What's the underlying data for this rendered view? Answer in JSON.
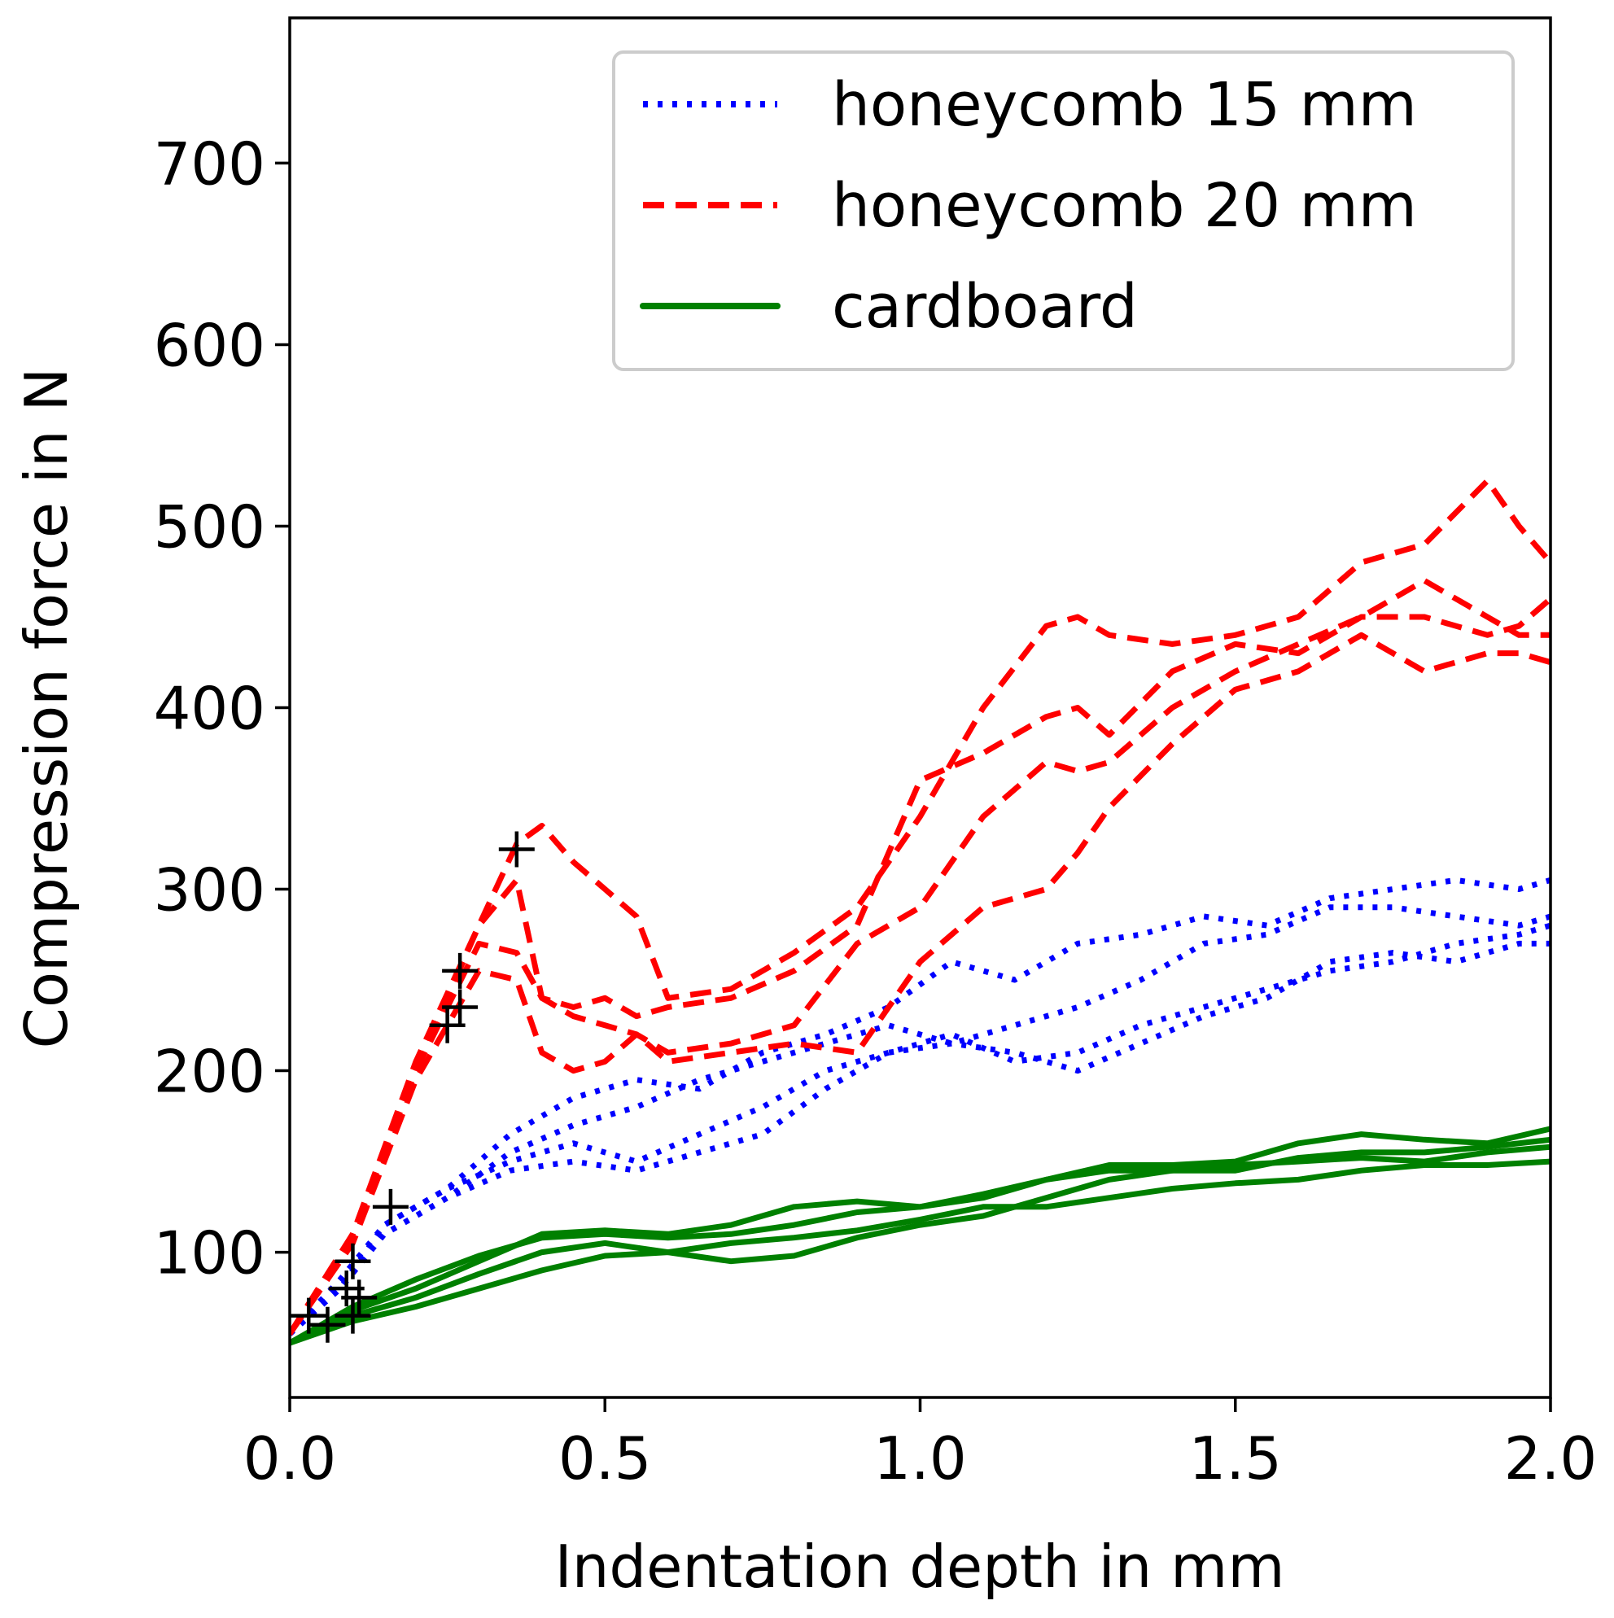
{
  "chart_data": {
    "type": "line",
    "title": "",
    "xlabel": "Indentation depth in mm",
    "ylabel": "Compression force in N",
    "xlim": [
      0.0,
      2.0
    ],
    "ylim": [
      20,
      780
    ],
    "xticks": [
      0.0,
      0.5,
      1.0,
      1.5,
      2.0
    ],
    "xtick_labels": [
      "0.0",
      "0.5",
      "1.0",
      "1.5",
      "2.0"
    ],
    "yticks": [
      100,
      200,
      300,
      400,
      500,
      600,
      700
    ],
    "ytick_labels": [
      "100",
      "200",
      "300",
      "400",
      "500",
      "600",
      "700"
    ],
    "grid": false,
    "legend_position": "top-right",
    "legend": [
      {
        "label": "honeycomb 15 mm",
        "color": "#0000ff",
        "style": "dotted"
      },
      {
        "label": "honeycomb 20 mm",
        "color": "#ff0000",
        "style": "dashed"
      },
      {
        "label": "cardboard",
        "color": "#008000",
        "style": "solid"
      }
    ],
    "colors": {
      "honeycomb_15": "#0000ff",
      "honeycomb_20": "#ff0000",
      "cardboard": "#008000",
      "marker": "#000000"
    },
    "series": [
      {
        "name": "honeycomb 15 mm #1",
        "group": "honeycomb 15 mm",
        "x": [
          0.0,
          0.08,
          0.15,
          0.25,
          0.35,
          0.45,
          0.55,
          0.65,
          0.75,
          0.85,
          0.95,
          1.05,
          1.15,
          1.25,
          1.35,
          1.45,
          1.55,
          1.65,
          1.75,
          1.85,
          1.95,
          2.0
        ],
        "y": [
          55,
          85,
          115,
          135,
          165,
          185,
          195,
          190,
          210,
          220,
          235,
          260,
          250,
          270,
          275,
          285,
          280,
          295,
          300,
          305,
          300,
          305
        ]
      },
      {
        "name": "honeycomb 15 mm #2",
        "group": "honeycomb 15 mm",
        "x": [
          0.0,
          0.08,
          0.15,
          0.25,
          0.35,
          0.45,
          0.55,
          0.65,
          0.75,
          0.85,
          0.95,
          1.05,
          1.15,
          1.25,
          1.35,
          1.45,
          1.55,
          1.65,
          1.75,
          1.85,
          1.95,
          2.0
        ],
        "y": [
          55,
          80,
          110,
          130,
          155,
          170,
          180,
          195,
          205,
          215,
          225,
          215,
          225,
          235,
          250,
          270,
          275,
          290,
          290,
          285,
          280,
          285
        ]
      },
      {
        "name": "honeycomb 15 mm #3",
        "group": "honeycomb 15 mm",
        "x": [
          0.0,
          0.08,
          0.15,
          0.25,
          0.35,
          0.45,
          0.55,
          0.65,
          0.75,
          0.85,
          0.95,
          1.05,
          1.15,
          1.25,
          1.35,
          1.45,
          1.55,
          1.65,
          1.75,
          1.85,
          1.95,
          2.0
        ],
        "y": [
          55,
          80,
          115,
          135,
          150,
          160,
          150,
          165,
          180,
          200,
          210,
          220,
          205,
          210,
          225,
          235,
          245,
          255,
          260,
          270,
          275,
          280
        ]
      },
      {
        "name": "honeycomb 15 mm #4",
        "group": "honeycomb 15 mm",
        "x": [
          0.0,
          0.08,
          0.15,
          0.25,
          0.35,
          0.45,
          0.55,
          0.65,
          0.75,
          0.85,
          0.95,
          1.05,
          1.15,
          1.25,
          1.35,
          1.45,
          1.55,
          1.65,
          1.75,
          1.85,
          1.95,
          2.0
        ],
        "y": [
          55,
          80,
          110,
          130,
          145,
          150,
          145,
          155,
          165,
          190,
          210,
          215,
          210,
          200,
          215,
          230,
          240,
          260,
          265,
          260,
          270,
          270
        ]
      },
      {
        "name": "honeycomb 20 mm #1",
        "group": "honeycomb 20 mm",
        "x": [
          0.0,
          0.1,
          0.2,
          0.3,
          0.36,
          0.4,
          0.45,
          0.5,
          0.55,
          0.6,
          0.7,
          0.8,
          0.9,
          1.0,
          1.1,
          1.2,
          1.25,
          1.3,
          1.4,
          1.5,
          1.6,
          1.7,
          1.8,
          1.9,
          1.95,
          2.0
        ],
        "y": [
          55,
          110,
          200,
          280,
          325,
          335,
          315,
          300,
          285,
          240,
          245,
          265,
          290,
          340,
          400,
          445,
          450,
          440,
          435,
          440,
          450,
          480,
          490,
          525,
          500,
          480
        ]
      },
      {
        "name": "honeycomb 20 mm #2",
        "group": "honeycomb 20 mm",
        "x": [
          0.0,
          0.1,
          0.2,
          0.3,
          0.36,
          0.4,
          0.45,
          0.5,
          0.55,
          0.6,
          0.7,
          0.8,
          0.9,
          1.0,
          1.1,
          1.2,
          1.25,
          1.3,
          1.4,
          1.5,
          1.6,
          1.7,
          1.8,
          1.9,
          1.95,
          2.0
        ],
        "y": [
          55,
          110,
          205,
          280,
          305,
          240,
          235,
          240,
          230,
          235,
          240,
          255,
          280,
          360,
          375,
          395,
          400,
          385,
          420,
          435,
          430,
          450,
          450,
          440,
          445,
          460
        ]
      },
      {
        "name": "honeycomb 20 mm #3",
        "group": "honeycomb 20 mm",
        "x": [
          0.0,
          0.1,
          0.2,
          0.3,
          0.36,
          0.4,
          0.45,
          0.5,
          0.55,
          0.6,
          0.7,
          0.8,
          0.9,
          1.0,
          1.1,
          1.2,
          1.25,
          1.3,
          1.4,
          1.5,
          1.6,
          1.7,
          1.8,
          1.9,
          1.95,
          2.0
        ],
        "y": [
          55,
          110,
          200,
          270,
          265,
          240,
          230,
          225,
          220,
          210,
          215,
          225,
          270,
          290,
          340,
          370,
          365,
          370,
          400,
          420,
          435,
          450,
          470,
          450,
          440,
          440
        ]
      },
      {
        "name": "honeycomb 20 mm #4",
        "group": "honeycomb 20 mm",
        "x": [
          0.0,
          0.1,
          0.2,
          0.3,
          0.36,
          0.4,
          0.45,
          0.5,
          0.55,
          0.6,
          0.7,
          0.8,
          0.9,
          1.0,
          1.1,
          1.2,
          1.25,
          1.3,
          1.4,
          1.5,
          1.6,
          1.7,
          1.8,
          1.9,
          1.95,
          2.0
        ],
        "y": [
          55,
          105,
          195,
          255,
          250,
          210,
          200,
          205,
          220,
          205,
          210,
          215,
          210,
          260,
          290,
          300,
          320,
          345,
          380,
          410,
          420,
          440,
          420,
          430,
          430,
          425
        ]
      },
      {
        "name": "cardboard #1",
        "group": "cardboard",
        "x": [
          0.0,
          0.1,
          0.2,
          0.3,
          0.4,
          0.5,
          0.6,
          0.7,
          0.8,
          0.9,
          1.0,
          1.1,
          1.2,
          1.3,
          1.4,
          1.5,
          1.6,
          1.7,
          1.8,
          1.9,
          2.0
        ],
        "y": [
          50,
          68,
          80,
          95,
          110,
          112,
          110,
          115,
          125,
          128,
          125,
          132,
          140,
          148,
          148,
          150,
          160,
          165,
          162,
          160,
          168
        ]
      },
      {
        "name": "cardboard #2",
        "group": "cardboard",
        "x": [
          0.0,
          0.1,
          0.2,
          0.3,
          0.4,
          0.5,
          0.6,
          0.7,
          0.8,
          0.9,
          1.0,
          1.1,
          1.2,
          1.3,
          1.4,
          1.5,
          1.6,
          1.7,
          1.8,
          1.9,
          2.0
        ],
        "y": [
          50,
          70,
          85,
          98,
          108,
          110,
          108,
          110,
          115,
          122,
          125,
          130,
          140,
          145,
          145,
          145,
          152,
          155,
          155,
          158,
          162
        ]
      },
      {
        "name": "cardboard #3",
        "group": "cardboard",
        "x": [
          0.0,
          0.1,
          0.2,
          0.3,
          0.4,
          0.5,
          0.6,
          0.7,
          0.8,
          0.9,
          1.0,
          1.1,
          1.2,
          1.3,
          1.4,
          1.5,
          1.6,
          1.7,
          1.8,
          1.9,
          2.0
        ],
        "y": [
          50,
          65,
          75,
          88,
          100,
          105,
          100,
          95,
          98,
          108,
          115,
          120,
          130,
          140,
          145,
          148,
          150,
          152,
          150,
          155,
          158
        ]
      },
      {
        "name": "cardboard #4",
        "group": "cardboard",
        "x": [
          0.0,
          0.1,
          0.2,
          0.3,
          0.4,
          0.5,
          0.6,
          0.7,
          0.8,
          0.9,
          1.0,
          1.1,
          1.2,
          1.3,
          1.4,
          1.5,
          1.6,
          1.7,
          1.8,
          1.9,
          2.0
        ],
        "y": [
          50,
          62,
          70,
          80,
          90,
          98,
          100,
          105,
          108,
          112,
          118,
          125,
          125,
          130,
          135,
          138,
          140,
          145,
          148,
          148,
          150
        ]
      }
    ],
    "markers": {
      "symbol": "+",
      "points": [
        {
          "x": 0.03,
          "y": 65
        },
        {
          "x": 0.06,
          "y": 60
        },
        {
          "x": 0.09,
          "y": 80
        },
        {
          "x": 0.1,
          "y": 65
        },
        {
          "x": 0.1,
          "y": 95
        },
        {
          "x": 0.11,
          "y": 75
        },
        {
          "x": 0.16,
          "y": 125
        },
        {
          "x": 0.25,
          "y": 225
        },
        {
          "x": 0.27,
          "y": 235
        },
        {
          "x": 0.27,
          "y": 255
        },
        {
          "x": 0.36,
          "y": 322
        }
      ]
    }
  }
}
